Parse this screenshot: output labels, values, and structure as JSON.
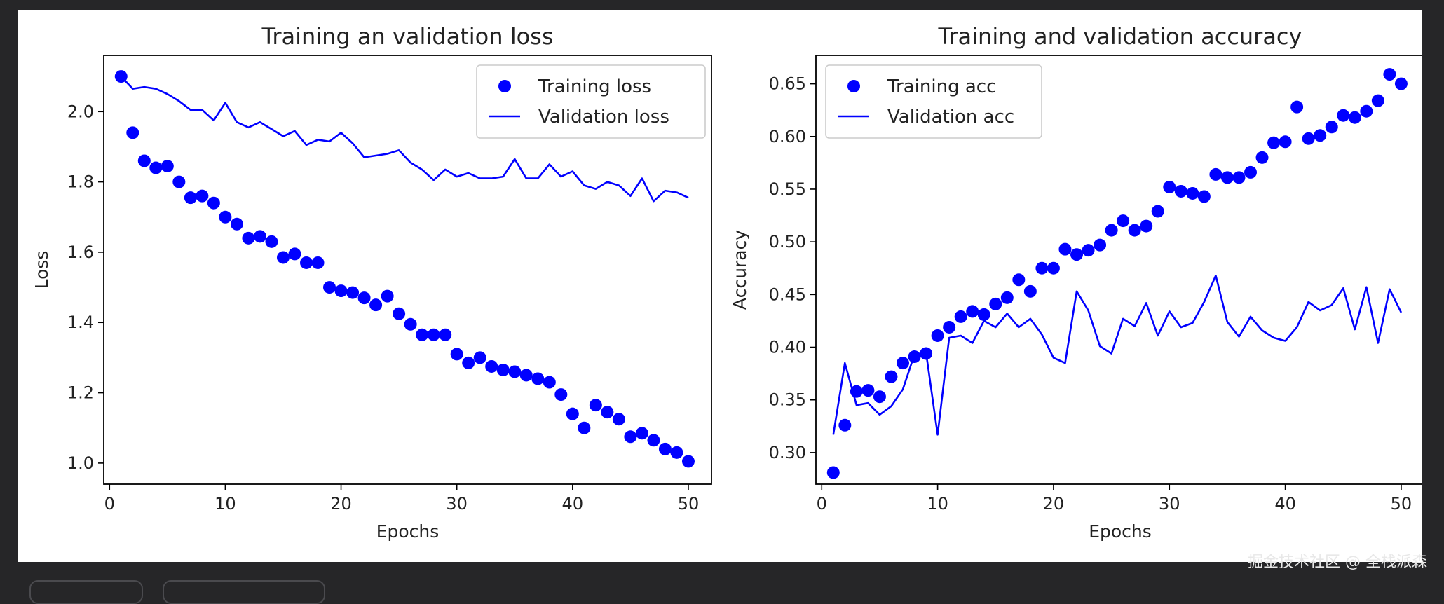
{
  "watermark": "掘金技术社区 @ 全栈派森",
  "colors": {
    "series": "#0000ff",
    "axis": "#000000",
    "text": "#222222"
  },
  "chart_data": [
    {
      "type": "line",
      "title": "Training an validation loss",
      "xlabel": "Epochs",
      "ylabel": "Loss",
      "xlim": [
        -0.5,
        52.0
      ],
      "ylim": [
        0.94,
        2.16
      ],
      "xticks": [
        0,
        10,
        20,
        30,
        40,
        50
      ],
      "yticks": [
        1.0,
        1.2,
        1.4,
        1.6,
        1.8,
        2.0
      ],
      "ytick_labels": [
        "1.0",
        "1.2",
        "1.4",
        "1.6",
        "1.8",
        "2.0"
      ],
      "legend_position": "top-right",
      "x": [
        1,
        2,
        3,
        4,
        5,
        6,
        7,
        8,
        9,
        10,
        11,
        12,
        13,
        14,
        15,
        16,
        17,
        18,
        19,
        20,
        21,
        22,
        23,
        24,
        25,
        26,
        27,
        28,
        29,
        30,
        31,
        32,
        33,
        34,
        35,
        36,
        37,
        38,
        39,
        40,
        41,
        42,
        43,
        44,
        45,
        46,
        47,
        48,
        49,
        50
      ],
      "series": [
        {
          "name": "Training loss",
          "style": "dots",
          "values": [
            2.1,
            1.94,
            1.86,
            1.84,
            1.845,
            1.8,
            1.755,
            1.76,
            1.74,
            1.7,
            1.68,
            1.64,
            1.645,
            1.63,
            1.585,
            1.595,
            1.57,
            1.57,
            1.5,
            1.49,
            1.485,
            1.47,
            1.45,
            1.475,
            1.425,
            1.395,
            1.365,
            1.365,
            1.365,
            1.31,
            1.285,
            1.3,
            1.275,
            1.265,
            1.26,
            1.25,
            1.24,
            1.23,
            1.195,
            1.14,
            1.1,
            1.165,
            1.145,
            1.125,
            1.075,
            1.085,
            1.065,
            1.04,
            1.03,
            1.005
          ]
        },
        {
          "name": "Validation loss",
          "style": "line",
          "values": [
            2.1,
            2.065,
            2.07,
            2.065,
            2.05,
            2.03,
            2.005,
            2.005,
            1.975,
            2.025,
            1.97,
            1.955,
            1.97,
            1.95,
            1.93,
            1.945,
            1.905,
            1.92,
            1.915,
            1.94,
            1.91,
            1.87,
            1.875,
            1.88,
            1.89,
            1.855,
            1.835,
            1.805,
            1.835,
            1.815,
            1.825,
            1.81,
            1.81,
            1.815,
            1.865,
            1.81,
            1.81,
            1.85,
            1.815,
            1.83,
            1.79,
            1.78,
            1.8,
            1.79,
            1.76,
            1.81,
            1.745,
            1.775,
            1.77,
            1.755
          ]
        }
      ]
    },
    {
      "type": "line",
      "title": "Training and validation accuracy",
      "xlabel": "Epochs",
      "ylabel": "Accuracy",
      "xlim": [
        -0.5,
        52.0
      ],
      "ylim": [
        0.27,
        0.677
      ],
      "xticks": [
        0,
        10,
        20,
        30,
        40,
        50
      ],
      "yticks": [
        0.3,
        0.35,
        0.4,
        0.45,
        0.5,
        0.55,
        0.6,
        0.65
      ],
      "ytick_labels": [
        "0.30",
        "0.35",
        "0.40",
        "0.45",
        "0.50",
        "0.55",
        "0.60",
        "0.65"
      ],
      "legend_position": "top-left",
      "x": [
        1,
        2,
        3,
        4,
        5,
        6,
        7,
        8,
        9,
        10,
        11,
        12,
        13,
        14,
        15,
        16,
        17,
        18,
        19,
        20,
        21,
        22,
        23,
        24,
        25,
        26,
        27,
        28,
        29,
        30,
        31,
        32,
        33,
        34,
        35,
        36,
        37,
        38,
        39,
        40,
        41,
        42,
        43,
        44,
        45,
        46,
        47,
        48,
        49,
        50
      ],
      "series": [
        {
          "name": "Training acc",
          "style": "dots",
          "values": [
            0.281,
            0.326,
            0.358,
            0.359,
            0.353,
            0.372,
            0.385,
            0.391,
            0.394,
            0.411,
            0.419,
            0.429,
            0.434,
            0.431,
            0.441,
            0.447,
            0.464,
            0.453,
            0.475,
            0.475,
            0.493,
            0.488,
            0.492,
            0.497,
            0.511,
            0.52,
            0.511,
            0.515,
            0.529,
            0.552,
            0.548,
            0.546,
            0.543,
            0.564,
            0.561,
            0.561,
            0.566,
            0.58,
            0.594,
            0.595,
            0.628,
            0.598,
            0.601,
            0.609,
            0.62,
            0.618,
            0.624,
            0.634,
            0.659,
            0.65
          ]
        },
        {
          "name": "Validation acc",
          "style": "line",
          "values": [
            0.317,
            0.385,
            0.345,
            0.347,
            0.336,
            0.344,
            0.36,
            0.393,
            0.395,
            0.317,
            0.409,
            0.411,
            0.404,
            0.425,
            0.419,
            0.432,
            0.419,
            0.427,
            0.412,
            0.39,
            0.385,
            0.453,
            0.435,
            0.401,
            0.394,
            0.427,
            0.42,
            0.442,
            0.411,
            0.434,
            0.419,
            0.423,
            0.443,
            0.468,
            0.424,
            0.41,
            0.429,
            0.416,
            0.409,
            0.406,
            0.419,
            0.443,
            0.435,
            0.44,
            0.456,
            0.417,
            0.457,
            0.404,
            0.455,
            0.433
          ]
        }
      ]
    }
  ]
}
